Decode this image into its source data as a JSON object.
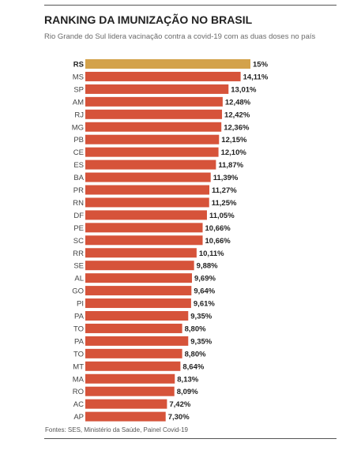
{
  "header": {
    "title": "RANKING DA IMUNIZAÇÃO NO BRASIL",
    "subtitle": "Rio Grande do Sul lidera vacinação contra a covid-19 com as duas doses no país"
  },
  "footer": {
    "source": "Fontes: SES, Ministério da Saúde, Painel Covid-19"
  },
  "colors": {
    "highlight": "#d3a24b",
    "bar": "#d6533a"
  },
  "chart_data": {
    "type": "bar",
    "orientation": "horizontal",
    "title": "RANKING DA IMUNIZAÇÃO NO BRASIL",
    "subtitle": "Rio Grande do Sul lidera vacinação contra a covid-19 com as duas doses no país",
    "categories": [
      "RS",
      "MS",
      "SP",
      "AM",
      "RJ",
      "MG",
      "PB",
      "CE",
      "ES",
      "BA",
      "PR",
      "RN",
      "DF",
      "PE",
      "SC",
      "RR",
      "SE",
      "AL",
      "GO",
      "PI",
      "PA",
      "TO",
      "PA",
      "TO",
      "MT",
      "MA",
      "RO",
      "AC",
      "AP"
    ],
    "values": [
      15,
      14.11,
      13.01,
      12.48,
      12.42,
      12.36,
      12.15,
      12.1,
      11.87,
      11.39,
      11.27,
      11.25,
      11.05,
      10.66,
      10.66,
      10.11,
      9.88,
      9.69,
      9.64,
      9.61,
      9.35,
      8.8,
      9.35,
      8.8,
      8.64,
      8.13,
      8.09,
      7.42,
      7.3
    ],
    "value_labels": [
      "15%",
      "14,11%",
      "13,01%",
      "12,48%",
      "12,42%",
      "12,36%",
      "12,15%",
      "12,10%",
      "11,87%",
      "11,39%",
      "11,27%",
      "11,25%",
      "11,05%",
      "10,66%",
      "10,66%",
      "10,11%",
      "9,88%",
      "9,69%",
      "9,64%",
      "9,61%",
      "9,35%",
      "8,80%",
      "9,35%",
      "8,80%",
      "8,64%",
      "8,13%",
      "8,09%",
      "7,42%",
      "7,30%"
    ],
    "highlight_category_index": 0,
    "xlim": [
      0,
      15
    ],
    "grid": false,
    "legend": "none"
  }
}
